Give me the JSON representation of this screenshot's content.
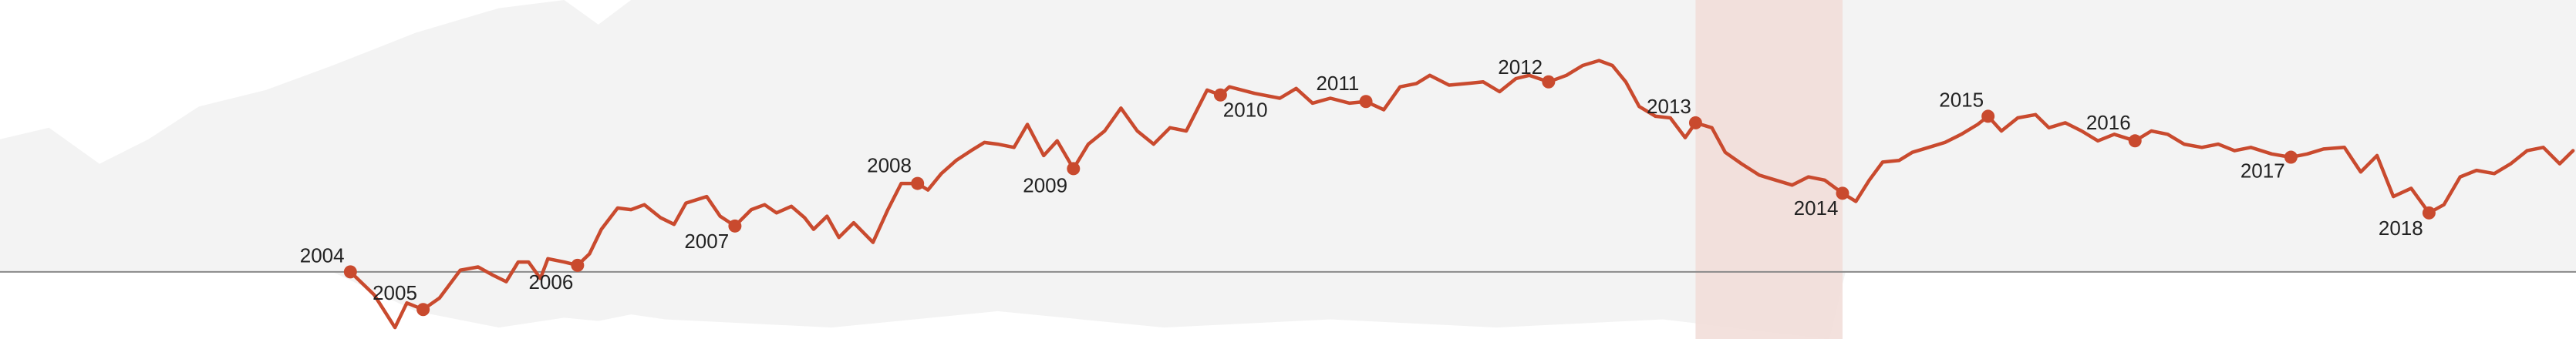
{
  "chart_data": {
    "type": "line",
    "xlim": [
      2001.64,
      2018.99
    ],
    "ylim": [
      -41,
      166
    ],
    "highlight": [
      2013.06,
      2014.05
    ],
    "highlight_color": "#f1dcd7",
    "background": {
      "color": "#f3f3f3",
      "x": [
        2001.64,
        2001.97,
        2002.31,
        2002.64,
        2002.98,
        2003.43,
        2003.88,
        2004.44,
        2005.0,
        2005.44,
        2005.67,
        2005.89,
        2006.12,
        2007.24,
        2008.36,
        2009.48,
        2010.6,
        2011.72,
        2012.84,
        2013.96,
        2014.07,
        2018.99
      ],
      "upper": [
        81,
        88,
        66,
        81,
        101,
        111,
        126,
        146,
        161,
        166,
        151,
        166,
        166,
        166,
        166,
        166,
        166,
        166,
        166,
        166,
        166,
        166
      ],
      "lower": [
        0,
        0,
        0,
        0,
        0,
        0,
        0,
        -24,
        -34,
        -28,
        -30,
        -26,
        -29,
        -34,
        -24,
        -34,
        -29,
        -34,
        -29,
        -41,
        0,
        0
      ]
    },
    "series": [
      {
        "color": "#c94a2e",
        "x": [
          2004.0,
          2004.16,
          2004.3,
          2004.38,
          2004.49,
          2004.6,
          2004.74,
          2004.86,
          2004.96,
          2005.05,
          2005.13,
          2005.2,
          2005.28,
          2005.33,
          2005.44,
          2005.53,
          2005.61,
          2005.69,
          2005.8,
          2005.89,
          2005.98,
          2006.09,
          2006.18,
          2006.26,
          2006.4,
          2006.49,
          2006.59,
          2006.7,
          2006.79,
          2006.87,
          2006.97,
          2007.06,
          2007.12,
          2007.21,
          2007.29,
          2007.39,
          2007.52,
          2007.62,
          2007.71,
          2007.82,
          2007.89,
          2007.98,
          2008.08,
          2008.18,
          2008.27,
          2008.36,
          2008.47,
          2008.56,
          2008.67,
          2008.76,
          2008.87,
          2008.97,
          2009.08,
          2009.19,
          2009.3,
          2009.41,
          2009.52,
          2009.63,
          2009.77,
          2009.86,
          2009.92,
          2010.09,
          2010.26,
          2010.37,
          2010.48,
          2010.6,
          2010.73,
          2010.84,
          2010.96,
          2011.07,
          2011.18,
          2011.27,
          2011.4,
          2011.52,
          2011.63,
          2011.74,
          2011.85,
          2011.94,
          2012.07,
          2012.19,
          2012.3,
          2012.41,
          2012.5,
          2012.59,
          2012.68,
          2012.79,
          2012.89,
          2012.99,
          2013.06,
          2013.17,
          2013.26,
          2013.37,
          2013.49,
          2013.6,
          2013.71,
          2013.82,
          2013.93,
          2014.05,
          2014.14,
          2014.23,
          2014.32,
          2014.43,
          2014.52,
          2014.63,
          2014.74,
          2014.85,
          2014.96,
          2015.03,
          2015.12,
          2015.23,
          2015.35,
          2015.44,
          2015.55,
          2015.66,
          2015.77,
          2015.88,
          2016.02,
          2016.13,
          2016.24,
          2016.35,
          2016.47,
          2016.58,
          2016.69,
          2016.8,
          2016.94,
          2017.07,
          2017.18,
          2017.29,
          2017.43,
          2017.54,
          2017.65,
          2017.76,
          2017.88,
          2018.0,
          2018.1,
          2018.21,
          2018.32,
          2018.44,
          2018.55,
          2018.66,
          2018.77,
          2018.88,
          2018.97
        ],
        "values": [
          0,
          -14,
          -34,
          -19,
          -23,
          -16,
          1,
          3,
          -2,
          -6,
          6,
          6,
          -4,
          8,
          6,
          4,
          11,
          26,
          39,
          38,
          41,
          33,
          29,
          42,
          46,
          34,
          28,
          38,
          41,
          36,
          40,
          33,
          26,
          34,
          21,
          30,
          18,
          38,
          54,
          54,
          50,
          60,
          68,
          74,
          79,
          78,
          76,
          90,
          71,
          80,
          63,
          78,
          86,
          100,
          86,
          78,
          88,
          86,
          111,
          108,
          113,
          109,
          106,
          112,
          103,
          106,
          103,
          104,
          99,
          113,
          115,
          120,
          114,
          115,
          116,
          110,
          118,
          120,
          116,
          120,
          126,
          129,
          126,
          116,
          101,
          95,
          94,
          82,
          91,
          88,
          73,
          66,
          59,
          56,
          53,
          58,
          56,
          48,
          43,
          56,
          67,
          68,
          73,
          76,
          79,
          84,
          90,
          95,
          86,
          94,
          96,
          88,
          91,
          86,
          80,
          84,
          80,
          86,
          84,
          78,
          76,
          78,
          74,
          76,
          72,
          70,
          72,
          75,
          76,
          61,
          71,
          46,
          51,
          36,
          41,
          58,
          62,
          60,
          66,
          74,
          76,
          66,
          74
        ]
      }
    ],
    "annotations": [
      {
        "text": "2004",
        "x": 2004.0,
        "y": 0
      },
      {
        "text": "2005",
        "x": 2004.49,
        "y": -23
      },
      {
        "text": "2006",
        "x": 2005.53,
        "y": 4
      },
      {
        "text": "2007",
        "x": 2006.59,
        "y": 28
      },
      {
        "text": "2008",
        "x": 2007.82,
        "y": 54
      },
      {
        "text": "2009",
        "x": 2008.87,
        "y": 63
      },
      {
        "text": "2010",
        "x": 2009.86,
        "y": 108
      },
      {
        "text": "2011",
        "x": 2010.84,
        "y": 104
      },
      {
        "text": "2012",
        "x": 2012.07,
        "y": 116
      },
      {
        "text": "2013",
        "x": 2013.06,
        "y": 91
      },
      {
        "text": "2014",
        "x": 2014.05,
        "y": 48
      },
      {
        "text": "2015",
        "x": 2015.03,
        "y": 95
      },
      {
        "text": "2016",
        "x": 2016.02,
        "y": 80
      },
      {
        "text": "2017",
        "x": 2017.07,
        "y": 70
      },
      {
        "text": "2018",
        "x": 2018.0,
        "y": 36
      }
    ]
  }
}
